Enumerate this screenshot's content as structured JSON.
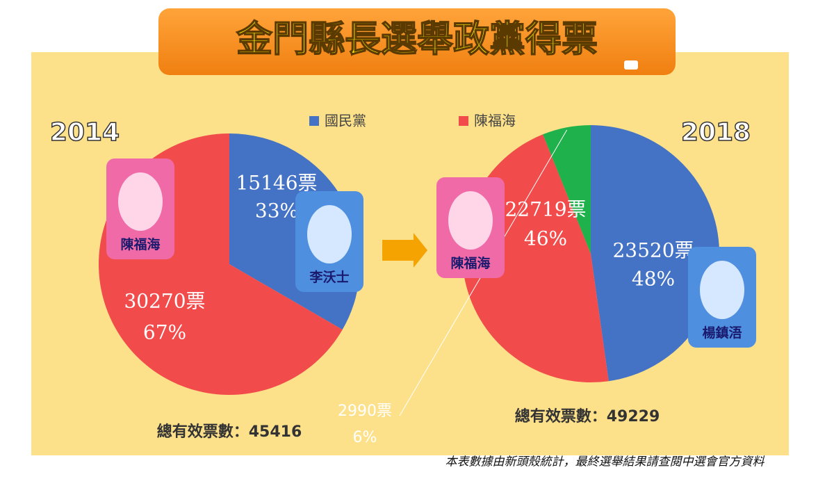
{
  "title": "金門縣長選舉政黨得票",
  "note": "本表數據由新頭殼統計，最終選舉結果請查閱中選會官方資料",
  "chart_data": [
    {
      "type": "pie",
      "title": "2014",
      "categories": [
        "國民黨",
        "陳福海"
      ],
      "values": [
        15146,
        30270
      ],
      "value_labels": [
        "15146票",
        "30270票"
      ],
      "percent_labels": [
        "33%",
        "67%"
      ],
      "colors": [
        "#4472c4",
        "#f24b4b"
      ],
      "candidates": [
        "李沃士",
        "陳福海"
      ],
      "total_label": "總有效票數：45416"
    },
    {
      "type": "pie",
      "title": "2018",
      "categories": [
        "國民黨",
        "陳福海",
        null
      ],
      "values": [
        23520,
        22719,
        2990
      ],
      "value_labels": [
        "23520票",
        "22719票",
        "2990票"
      ],
      "percent_labels": [
        "48%",
        "46%",
        "6%"
      ],
      "colors": [
        "#4472c4",
        "#f24b4b",
        "#1fb14b"
      ],
      "candidates": [
        "楊鎮浯",
        "陳福海"
      ],
      "total_label": "總有效票數：49229"
    }
  ]
}
